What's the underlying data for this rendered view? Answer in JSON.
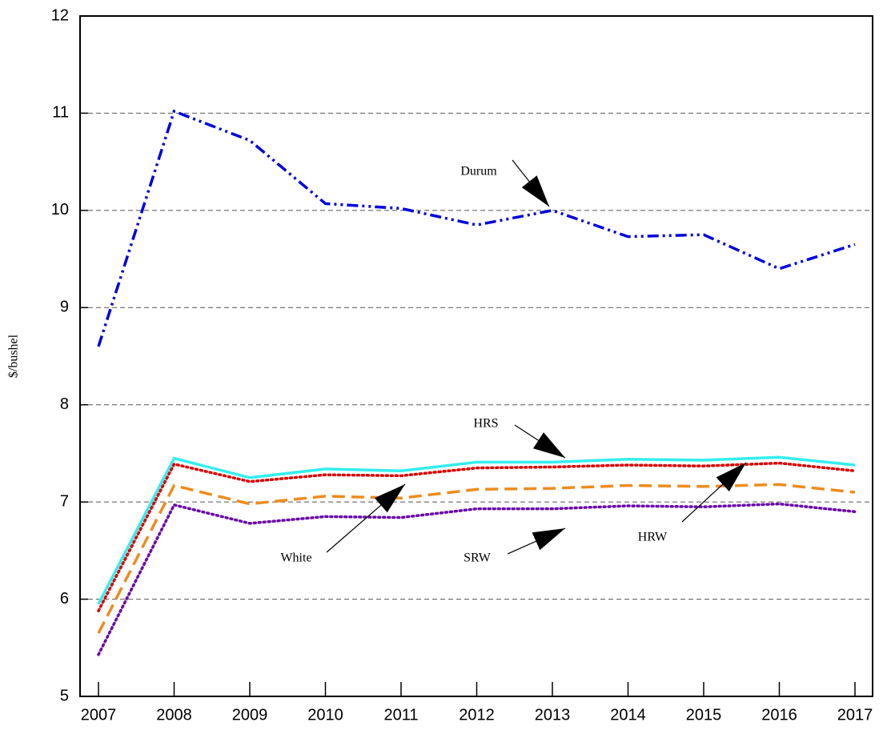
{
  "chart_data": {
    "type": "line",
    "y_label": "$/bushel",
    "x": [
      2007,
      2008,
      2009,
      2010,
      2011,
      2012,
      2013,
      2014,
      2015,
      2016,
      2017
    ],
    "xlim": [
      2007,
      2017
    ],
    "xticks": [
      2007,
      2008,
      2009,
      2010,
      2011,
      2012,
      2013,
      2014,
      2015,
      2016,
      2017
    ],
    "ylim": [
      5,
      12
    ],
    "yticks": [
      5,
      6,
      7,
      8,
      9,
      10,
      11,
      12
    ],
    "grid": true,
    "series": [
      {
        "name": "Durum",
        "color": "#0000dd",
        "values": [
          8.6,
          11.02,
          10.72,
          10.07,
          10.02,
          9.85,
          10.0,
          9.73,
          9.75,
          9.4,
          9.65
        ]
      },
      {
        "name": "HRS",
        "color": "#33eeee",
        "values": [
          5.95,
          7.45,
          7.25,
          7.34,
          7.32,
          7.41,
          7.41,
          7.44,
          7.43,
          7.46,
          7.38
        ]
      },
      {
        "name": "HRW",
        "color": "#dd0000",
        "values": [
          5.88,
          7.39,
          7.21,
          7.28,
          7.27,
          7.35,
          7.36,
          7.38,
          7.37,
          7.4,
          7.32
        ]
      },
      {
        "name": "White",
        "color": "#ee8c1c",
        "values": [
          5.65,
          7.17,
          6.98,
          7.06,
          7.04,
          7.13,
          7.14,
          7.17,
          7.16,
          7.18,
          7.1
        ]
      },
      {
        "name": "SRW",
        "color": "#6a0aa8",
        "values": [
          5.43,
          6.97,
          6.78,
          6.85,
          6.84,
          6.93,
          6.93,
          6.96,
          6.95,
          6.98,
          6.9
        ]
      }
    ]
  }
}
